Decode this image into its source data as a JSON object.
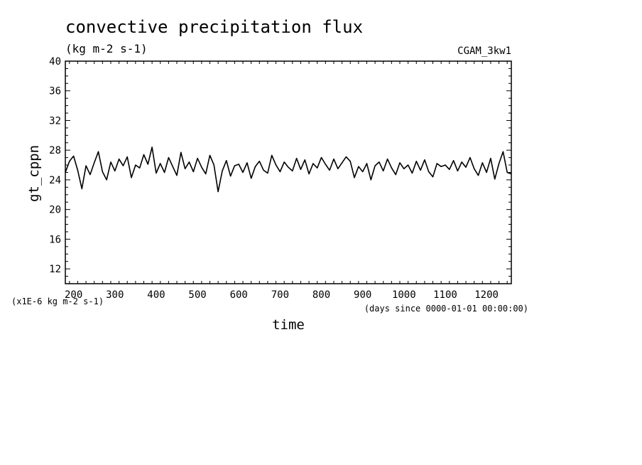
{
  "chart_data": {
    "type": "line",
    "title": "convective precipitation flux",
    "units": "(kg m-2 s-1)",
    "run_label": "CGAM_3kw1",
    "xlabel": "time",
    "x_units": "(days since 0000-01-01 00:00:00)",
    "ylabel": "gt_cppn",
    "y_scale_note": "(x1E-6 kg m-2 s-1)",
    "xlim": [
      180,
      1260
    ],
    "ylim": [
      10,
      40
    ],
    "x_ticks": [
      200,
      300,
      400,
      500,
      600,
      700,
      800,
      900,
      1000,
      1100,
      1200
    ],
    "y_ticks": [
      12,
      16,
      20,
      24,
      28,
      32,
      36,
      40
    ],
    "grid": false,
    "color": "#000000",
    "series": [
      {
        "x": [
          180,
          190,
          200,
          210,
          220,
          230,
          240,
          250,
          260,
          270,
          280,
          290,
          300,
          310,
          320,
          330,
          340,
          350,
          360,
          370,
          380,
          390,
          400,
          410,
          420,
          430,
          440,
          450,
          460,
          470,
          480,
          490,
          500,
          510,
          520,
          530,
          540,
          550,
          560,
          570,
          580,
          590,
          600,
          610,
          620,
          630,
          640,
          650,
          660,
          670,
          680,
          690,
          700,
          710,
          720,
          730,
          740,
          750,
          760,
          770,
          780,
          790,
          800,
          810,
          820,
          830,
          840,
          850,
          860,
          870,
          880,
          890,
          900,
          910,
          920,
          930,
          940,
          950,
          960,
          970,
          980,
          990,
          1000,
          1010,
          1020,
          1030,
          1040,
          1050,
          1060,
          1070,
          1080,
          1090,
          1100,
          1110,
          1120,
          1130,
          1140,
          1150,
          1160,
          1170,
          1180,
          1190,
          1200,
          1210,
          1220,
          1230,
          1240,
          1250,
          1260
        ],
        "y": [
          25.0,
          26.5,
          27.2,
          25.3,
          22.8,
          25.9,
          24.7,
          26.3,
          27.8,
          25.1,
          24.0,
          26.4,
          25.2,
          26.8,
          25.9,
          27.1,
          24.3,
          26.0,
          25.6,
          27.4,
          26.1,
          28.4,
          24.9,
          26.2,
          25.0,
          27.0,
          25.8,
          24.6,
          27.7,
          25.5,
          26.4,
          25.1,
          26.9,
          25.7,
          24.8,
          27.3,
          26.0,
          22.4,
          25.2,
          26.6,
          24.5,
          25.9,
          26.1,
          25.0,
          26.3,
          24.2,
          25.8,
          26.5,
          25.3,
          24.9,
          27.3,
          26.0,
          25.1,
          26.4,
          25.7,
          25.2,
          26.9,
          25.4,
          26.7,
          24.8,
          26.2,
          25.6,
          27.0,
          26.1,
          25.3,
          26.8,
          25.5,
          26.3,
          27.1,
          26.5,
          24.3,
          25.8,
          25.1,
          26.2,
          24.0,
          25.9,
          26.4,
          25.2,
          26.8,
          25.6,
          24.7,
          26.3,
          25.5,
          26.0,
          24.9,
          26.5,
          25.3,
          26.7,
          25.1,
          24.4,
          26.2,
          25.8,
          26.0,
          25.4,
          26.6,
          25.2,
          26.4,
          25.7,
          27.0,
          25.5,
          24.6,
          26.3,
          25.0,
          26.9,
          24.1,
          26.2,
          27.8,
          25.0,
          24.8
        ]
      }
    ]
  }
}
